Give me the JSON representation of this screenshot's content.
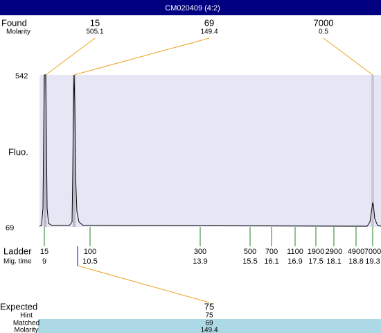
{
  "title": "CM020409 (4:2)",
  "found": {
    "label": "Found",
    "sublabel": "Molarity",
    "peaks": [
      {
        "size": 15,
        "molarity": 505.1
      },
      {
        "size": 69,
        "molarity": 149.4
      },
      {
        "size": 7000,
        "molarity": 0.5
      }
    ]
  },
  "y_axis": {
    "label": "Fluo.",
    "max": 542,
    "min": 69
  },
  "ladder": {
    "label": "Ladder",
    "sublabel": "Mig. time",
    "bands": [
      {
        "size": 15,
        "time": 9
      },
      {
        "size": 100,
        "time": 10.5
      },
      {
        "size": 300,
        "time": 13.9
      },
      {
        "size": 500,
        "time": 15.5
      },
      {
        "size": 700,
        "time": 16.1
      },
      {
        "size": 1100,
        "time": 16.9
      },
      {
        "size": 1900,
        "time": 17.5
      },
      {
        "size": 2900,
        "time": 18.1
      },
      {
        "size": 4900,
        "time": 18.8
      },
      {
        "size": 7000,
        "time": 19.3
      }
    ]
  },
  "expected": {
    "label": "Expected",
    "value": 75,
    "rows": [
      {
        "label": "Hint",
        "value": 75
      },
      {
        "label": "Matched",
        "value": 69
      },
      {
        "label": "Molarity",
        "value": 149.4
      }
    ]
  }
}
